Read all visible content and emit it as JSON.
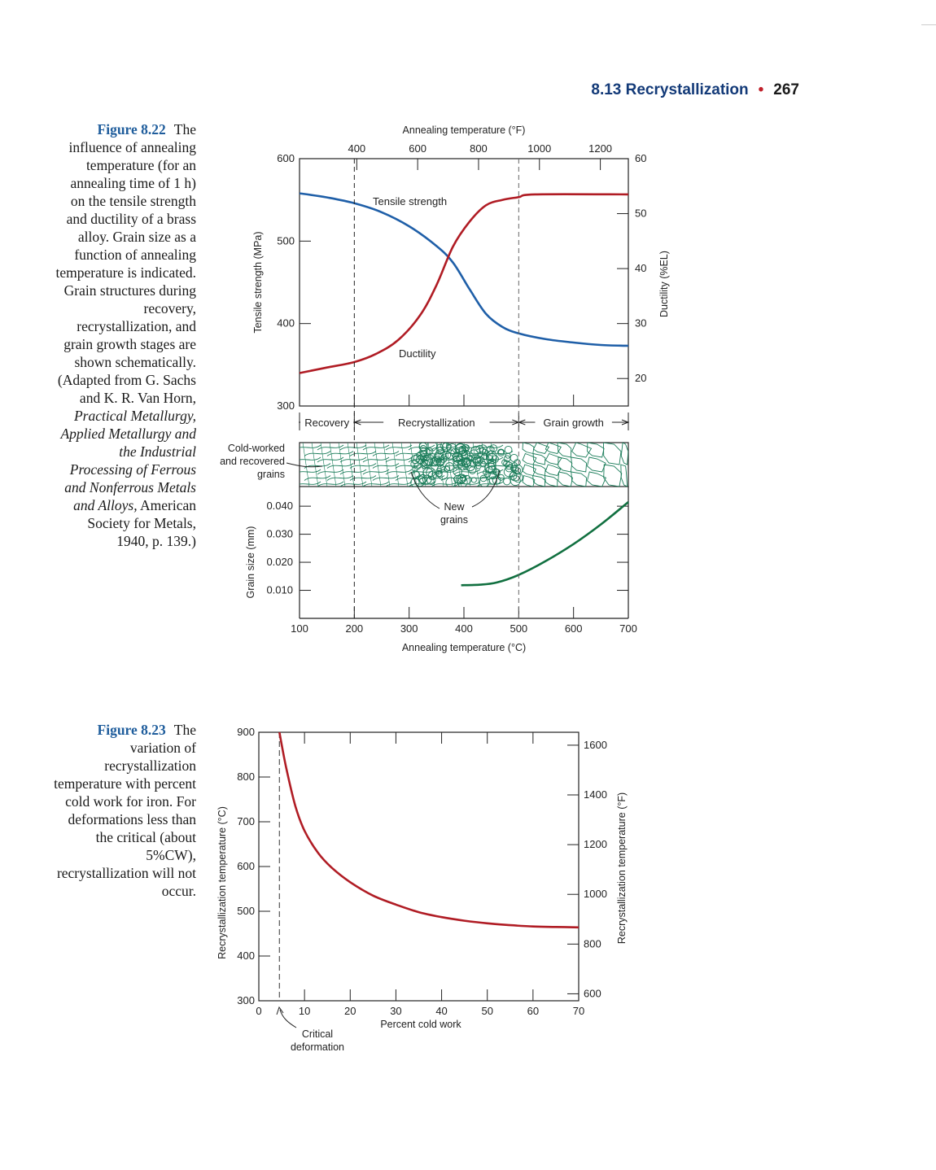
{
  "header": {
    "section": "8.13 Recrystallization",
    "bullet": "•",
    "page": "267"
  },
  "fig822": {
    "label": "Figure 8.22",
    "caption_plain": "The influence of annealing temperature (for an annealing time of 1 h) on the tensile strength and ductility of a brass alloy. Grain size as a function of annealing temperature is indicated. Grain structures during recovery, recrystallization, and grain growth stages are shown schematically. (Adapted from G. Sachs and K. R. Van Horn,",
    "caption_italic": "Practical Metallurgy, Applied Metallurgy and the Industrial Processing of Ferrous and Nonferrous Metals and Alloys,",
    "caption_end": "American Society for Metals, 1940, p. 139.)"
  },
  "fig823": {
    "label": "Figure 8.23",
    "caption": "The variation of recrystallization temperature with percent cold work for iron. For deformations less than the critical (about 5%CW), recrystallization will not occur."
  },
  "chart_data": [
    {
      "type": "line",
      "x_label_bottom": "Annealing temperature (°C)",
      "x_label_top": "Annealing temperature (°F)",
      "xlim": [
        100,
        700
      ],
      "x_ticks_bottom": [
        100,
        200,
        300,
        400,
        500,
        600,
        700
      ],
      "x_ticks_top": [
        400,
        600,
        800,
        1000,
        1200
      ],
      "ylabel_left": "Tensile strength (MPa)",
      "ylim_left": [
        300,
        600
      ],
      "y_ticks_left": [
        300,
        400,
        500,
        600
      ],
      "ylabel_right": "Ductility (%EL)",
      "ylim_right": [
        15,
        60
      ],
      "y_ticks_right": [
        20,
        30,
        40,
        50,
        60
      ],
      "stages": [
        "Recovery",
        "Recrystallization",
        "Grain growth"
      ],
      "stage_boundaries": [
        200,
        500
      ],
      "annotations": {
        "cold": "Cold-worked\nand recovered\ngrains",
        "new": "New\ngrains"
      },
      "series": [
        {
          "name": "Tensile strength",
          "color": "#1f5fa8",
          "axis": "left",
          "points": [
            [
              100,
              558
            ],
            [
              150,
              553
            ],
            [
              200,
              546
            ],
            [
              250,
              535
            ],
            [
              300,
              518
            ],
            [
              350,
              494
            ],
            [
              380,
              474
            ],
            [
              410,
              442
            ],
            [
              440,
              412
            ],
            [
              470,
              396
            ],
            [
              500,
              388
            ],
            [
              550,
              381
            ],
            [
              600,
              377
            ],
            [
              650,
              374
            ],
            [
              700,
              373
            ]
          ]
        },
        {
          "name": "Ductility",
          "color": "#b01c24",
          "axis": "right",
          "points": [
            [
              100,
              21
            ],
            [
              150,
              22
            ],
            [
              200,
              23
            ],
            [
              240,
              24.5
            ],
            [
              280,
              27
            ],
            [
              320,
              31.5
            ],
            [
              350,
              37
            ],
            [
              380,
              44
            ],
            [
              410,
              48.5
            ],
            [
              440,
              51.5
            ],
            [
              470,
              52.5
            ],
            [
              500,
              53
            ],
            [
              530,
              53.5
            ],
            [
              700,
              53.5
            ]
          ]
        }
      ],
      "grain_size": {
        "ylabel": "Grain size (mm)",
        "ylim": [
          0,
          0.047
        ],
        "y_ticks": [
          0.01,
          0.02,
          0.03,
          0.04
        ],
        "y_tick_labels": [
          "0.010",
          "0.020",
          "0.030",
          "0.040"
        ],
        "color": "#117040",
        "points": [
          [
            395,
            0.0118
          ],
          [
            430,
            0.012
          ],
          [
            460,
            0.0128
          ],
          [
            500,
            0.0155
          ],
          [
            550,
            0.0205
          ],
          [
            600,
            0.0265
          ],
          [
            650,
            0.0335
          ],
          [
            700,
            0.0415
          ]
        ]
      }
    },
    {
      "type": "line",
      "xlabel": "Percent cold work",
      "xlim": [
        0,
        70
      ],
      "x_ticks": [
        0,
        10,
        20,
        30,
        40,
        50,
        60,
        70
      ],
      "ylabel_left": "Recrystallization temperature (°C)",
      "ylim_left": [
        300,
        900
      ],
      "y_ticks_left": [
        300,
        400,
        500,
        600,
        700,
        800,
        900
      ],
      "ylabel_right": "Recrystallization temperature (°F)",
      "y_ticks_right": [
        600,
        800,
        1000,
        1200,
        1400,
        1600
      ],
      "critical_x": 4.5,
      "annotation": "Critical\ndeformation",
      "series": [
        {
          "name": "",
          "color": "#b01c24",
          "points": [
            [
              4.5,
              900
            ],
            [
              6,
              820
            ],
            [
              8,
              735
            ],
            [
              10,
              680
            ],
            [
              13,
              630
            ],
            [
              16,
              597
            ],
            [
              20,
              565
            ],
            [
              25,
              535
            ],
            [
              30,
              515
            ],
            [
              35,
              498
            ],
            [
              40,
              487
            ],
            [
              45,
              479
            ],
            [
              50,
              473
            ],
            [
              55,
              469
            ],
            [
              60,
              466
            ],
            [
              65,
              465
            ],
            [
              70,
              464
            ]
          ]
        }
      ]
    }
  ]
}
